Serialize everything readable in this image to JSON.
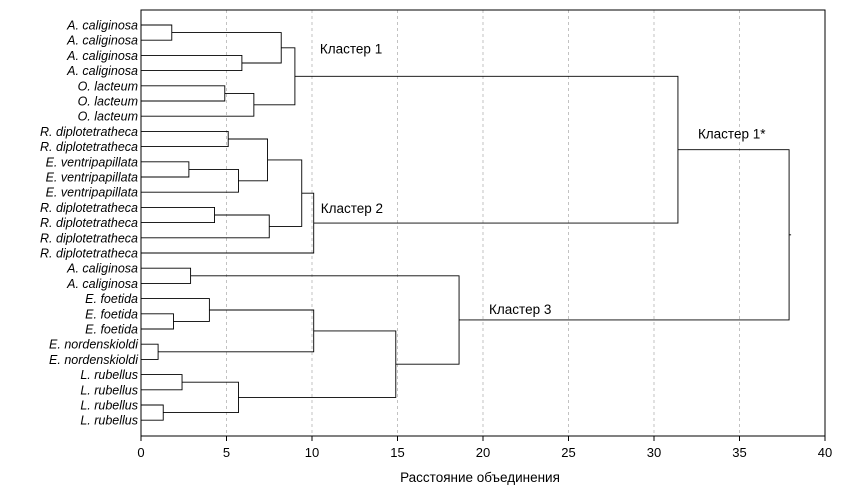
{
  "chart_data": {
    "type": "dendrogram",
    "xlabel": "Расстояние объединения",
    "xlim": [
      0,
      40
    ],
    "xticks": [
      0,
      5,
      10,
      15,
      20,
      25,
      30,
      35,
      40
    ],
    "grid": "vertical dashed",
    "leaves": [
      "A. caliginosa",
      "A. caliginosa",
      "A. caliginosa",
      "A. caliginosa",
      "O. lacteum",
      "O. lacteum",
      "O. lacteum",
      "R. diplotetratheca",
      "R. diplotetratheca",
      "E. ventripapillata",
      "E. ventripapillata",
      "E. ventripapillata",
      "R. diplotetratheca",
      "R. diplotetratheca",
      "R. diplotetratheca",
      "R. diplotetratheca",
      "A. caliginosa",
      "A. caliginosa",
      "E. foetida",
      "E. foetida",
      "E. foetida",
      "E. nordenskioldi",
      "E. nordenskioldi",
      "L. rubellus",
      "L. rubellus",
      "L. rubellus",
      "L. rubellus"
    ],
    "merges": [
      {
        "id": "m1",
        "a": "L0",
        "b": "L1",
        "height": 1.8
      },
      {
        "id": "m2",
        "a": "L2",
        "b": "L3",
        "height": 5.9
      },
      {
        "id": "m3",
        "a": "m1",
        "b": "m2",
        "height": 8.2
      },
      {
        "id": "m4",
        "a": "L4",
        "b": "L5",
        "height": 4.9
      },
      {
        "id": "m5",
        "a": "m4",
        "b": "L6",
        "height": 6.6
      },
      {
        "id": "m6",
        "a": "m3",
        "b": "m5",
        "height": 9.0
      },
      {
        "id": "m7",
        "a": "L7",
        "b": "L8",
        "height": 5.1
      },
      {
        "id": "m8",
        "a": "L9",
        "b": "L10",
        "height": 2.8
      },
      {
        "id": "m9",
        "a": "m8",
        "b": "L11",
        "height": 5.7
      },
      {
        "id": "m10",
        "a": "m7",
        "b": "m9",
        "height": 7.4
      },
      {
        "id": "m11",
        "a": "L12",
        "b": "L13",
        "height": 4.3
      },
      {
        "id": "m12",
        "a": "m11",
        "b": "L14",
        "height": 7.5
      },
      {
        "id": "m13",
        "a": "m10",
        "b": "m12",
        "height": 9.4
      },
      {
        "id": "m14",
        "a": "m13",
        "b": "L15",
        "height": 10.1
      },
      {
        "id": "m15",
        "a": "m6",
        "b": "m14",
        "height": 31.4
      },
      {
        "id": "m16",
        "a": "L16",
        "b": "L17",
        "height": 2.9
      },
      {
        "id": "m17",
        "a": "L19",
        "b": "L20",
        "height": 1.9
      },
      {
        "id": "m18",
        "a": "L18",
        "b": "m17",
        "height": 4.0
      },
      {
        "id": "m19",
        "a": "L21",
        "b": "L22",
        "height": 1.0
      },
      {
        "id": "m20",
        "a": "m18",
        "b": "m19",
        "height": 10.1
      },
      {
        "id": "m21",
        "a": "L23",
        "b": "L24",
        "height": 2.4
      },
      {
        "id": "m22",
        "a": "L25",
        "b": "L26",
        "height": 1.3
      },
      {
        "id": "m23",
        "a": "m21",
        "b": "m22",
        "height": 5.7
      },
      {
        "id": "m24",
        "a": "m20",
        "b": "m23",
        "height": 14.9
      },
      {
        "id": "m25",
        "a": "m16",
        "b": "m24",
        "height": 18.6
      },
      {
        "id": "m26",
        "a": "m15",
        "b": "m25",
        "height": 37.9
      }
    ],
    "annotations": [
      {
        "text": "Кластер 1",
        "node": "m6"
      },
      {
        "text": "Кластер 2",
        "node": "m14"
      },
      {
        "text": "Кластер 3",
        "node": "m25"
      },
      {
        "text": "Кластер 1*",
        "node": "m15"
      }
    ]
  }
}
